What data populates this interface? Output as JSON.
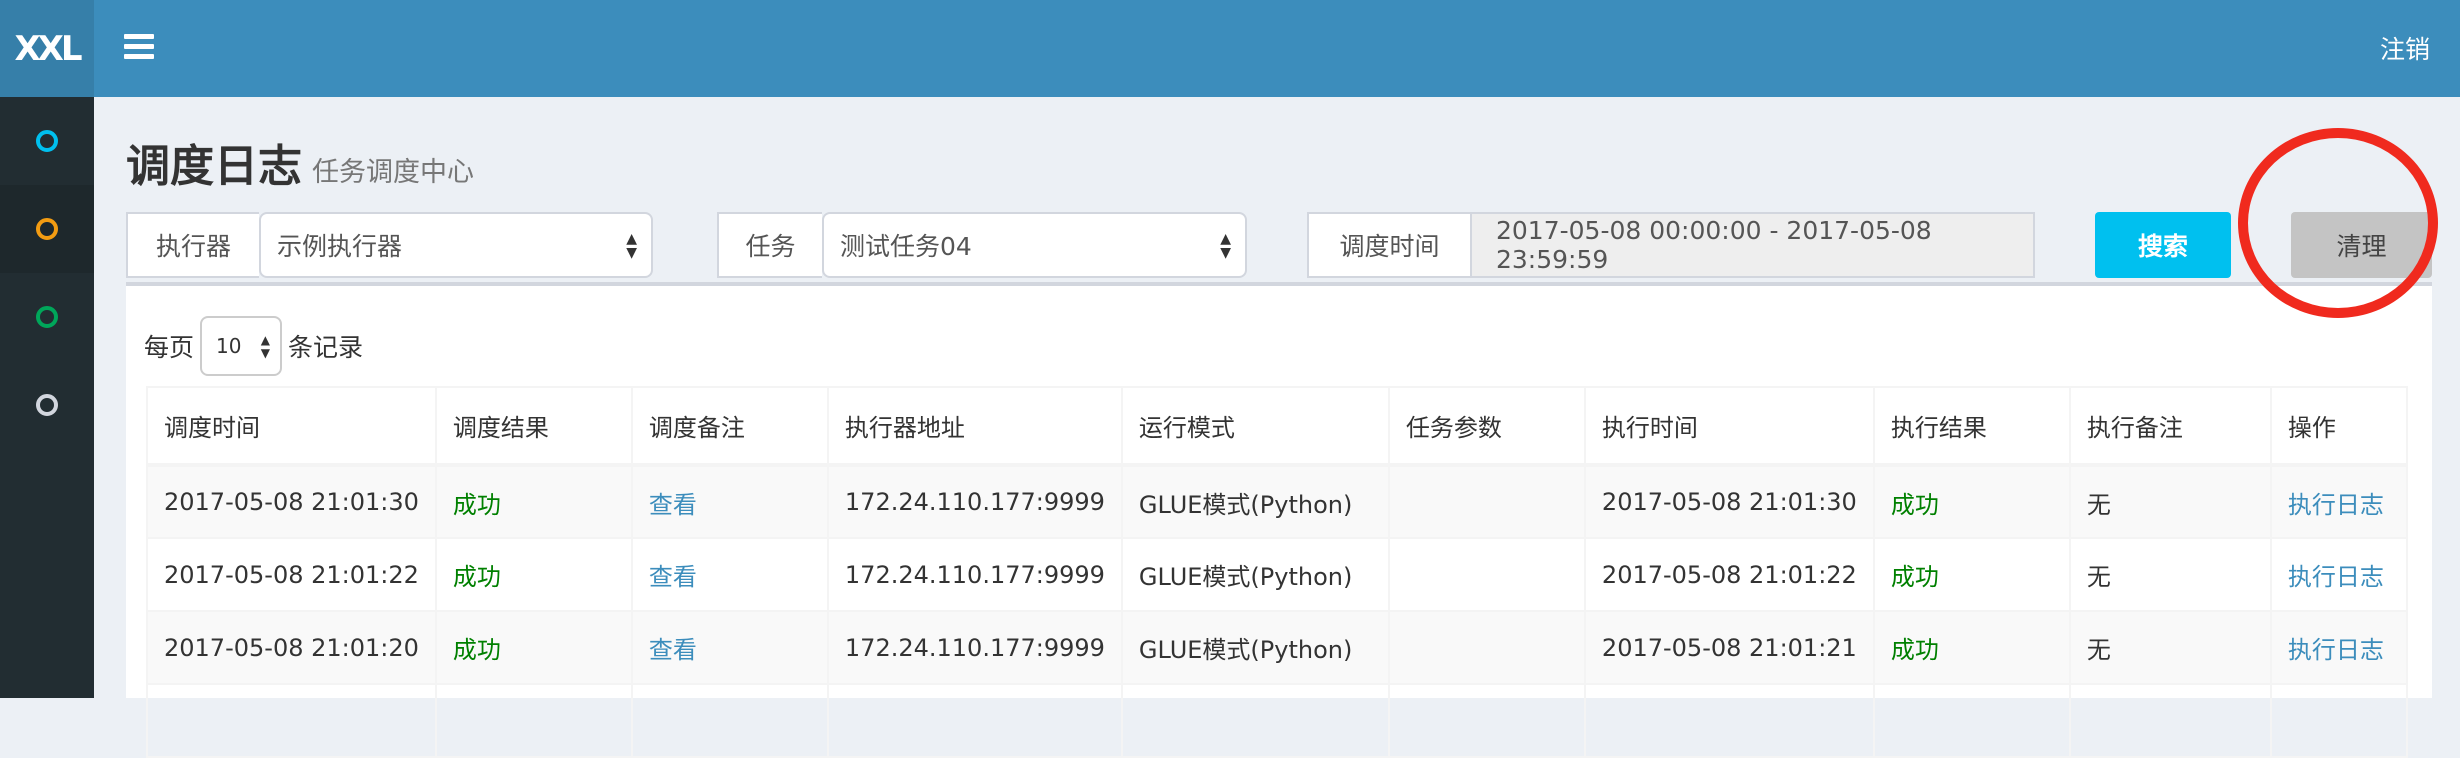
{
  "app": {
    "logo": "XXL",
    "logout": "注销"
  },
  "sidebar": {
    "items": [
      {
        "icon": "circle-icon",
        "color": "#00c0ef"
      },
      {
        "icon": "circle-icon",
        "color": "#f39c12"
      },
      {
        "icon": "circle-icon",
        "color": "#00a65a"
      },
      {
        "icon": "circle-icon",
        "color": "#d2d6de"
      }
    ]
  },
  "page": {
    "title": "调度日志",
    "subtitle": "任务调度中心"
  },
  "filters": {
    "executor_label": "执行器",
    "executor_value": "示例执行器",
    "job_label": "任务",
    "job_value": "测试任务04",
    "time_label": "调度时间",
    "time_value": "2017-05-08 00:00:00 - 2017-05-08 23:59:59",
    "search": "搜索",
    "clear": "清理"
  },
  "pager": {
    "prefix": "每页",
    "size": "10",
    "suffix": "条记录"
  },
  "table": {
    "headers": [
      "调度时间",
      "调度结果",
      "调度备注",
      "执行器地址",
      "运行模式",
      "任务参数",
      "执行时间",
      "执行结果",
      "执行备注",
      "操作"
    ],
    "rows": [
      [
        "2017-05-08 21:01:30",
        "成功",
        "查看",
        "172.24.110.177:9999",
        "GLUE模式(Python)",
        "",
        "2017-05-08 21:01:30",
        "成功",
        "无",
        "执行日志"
      ],
      [
        "2017-05-08 21:01:22",
        "成功",
        "查看",
        "172.24.110.177:9999",
        "GLUE模式(Python)",
        "",
        "2017-05-08 21:01:22",
        "成功",
        "无",
        "执行日志"
      ],
      [
        "2017-05-08 21:01:20",
        "成功",
        "查看",
        "172.24.110.177:9999",
        "GLUE模式(Python)",
        "",
        "2017-05-08 21:01:21",
        "成功",
        "无",
        "执行日志"
      ],
      [
        "",
        "",
        "",
        "",
        "",
        "",
        "",
        "",
        "",
        ""
      ]
    ]
  },
  "colors": {
    "header": "#3c8dbc",
    "sidebar": "#222d32",
    "success": "#008000",
    "link": "#3c8dbc",
    "search_button": "#00c0ef",
    "annotation": "#f02a1e"
  }
}
